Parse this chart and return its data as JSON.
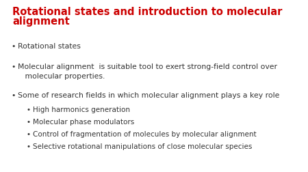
{
  "title_line1": "Rotational states and introduction to molecular",
  "title_line2": "alignment",
  "title_color": "#cc0000",
  "title_fontsize": 10.5,
  "background_color": "#ffffff",
  "bullet_color": "#333333",
  "bullet_fontsize": 7.8,
  "sub_bullet_fontsize": 7.5,
  "bullets": [
    "Rotational states",
    "Molecular alignment  is suitable tool to exert strong-field control over\n   molecular properties.",
    "Some of research fields in which molecular alignment plays a key role"
  ],
  "sub_bullets": [
    "High harmonics generation",
    "Molecular phase modulators",
    "Control of fragmentation of molecules by molecular alignment",
    "Selective rotational manipulations of close molecular species"
  ]
}
